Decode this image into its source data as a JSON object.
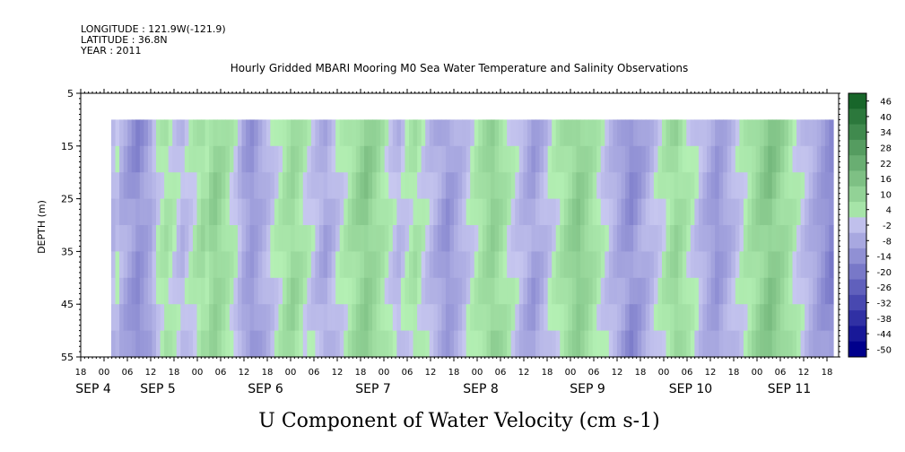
{
  "header": {
    "longitude": "LONGITUDE : 121.9W(-121.9)",
    "latitude": "LATITUDE : 36.8N",
    "year": "YEAR : 2011",
    "title": "Hourly Gridded MBARI Mooring M0 Sea Water Temperature and Salinity Observations"
  },
  "chart_data": {
    "type": "heatmap",
    "title": "Hourly Gridded MBARI Mooring M0 Sea Water Temperature and Salinity Observations",
    "xlabel": "U Component of Water Velocity (cm s-1)",
    "ylabel": "DEPTH (m)",
    "y_ticks": [
      "5",
      "15",
      "25",
      "35",
      "45",
      "55"
    ],
    "ylim": [
      5,
      55
    ],
    "y_reversed": true,
    "data_depth_range": [
      10,
      55
    ],
    "x_range_hours": [
      "2011-09-04 18:00",
      "2011-09-11 21:00"
    ],
    "data_time_range": [
      "2011-09-05 00:00",
      "2011-09-11 18:00"
    ],
    "x_hour_ticks": [
      "18",
      "00",
      "06",
      "12",
      "18",
      "00",
      "06",
      "12",
      "18",
      "00",
      "06",
      "12",
      "18",
      "00",
      "06",
      "12",
      "18",
      "00",
      "06",
      "12",
      "18",
      "00",
      "06",
      "12",
      "18",
      "00",
      "06",
      "12",
      "18",
      "00",
      "06",
      "12",
      "18"
    ],
    "x_day_ticks": [
      "SEP 4",
      "SEP 5",
      "SEP 6",
      "SEP 7",
      "SEP 8",
      "SEP 9",
      "SEP 10",
      "SEP 11"
    ],
    "colorbar": {
      "labels": [
        "46",
        "40",
        "34",
        "28",
        "22",
        "16",
        "10",
        "4",
        "-2",
        "-8",
        "-14",
        "-20",
        "-26",
        "-32",
        "-38",
        "-44",
        "-50"
      ],
      "range": [
        -50,
        52
      ]
    },
    "column_values": [
      -4,
      -2,
      -6,
      -8,
      -10,
      -12,
      -14,
      -12,
      -10,
      -8,
      -4,
      0,
      2,
      4,
      2,
      0,
      -2,
      -4,
      -2,
      0,
      2,
      4,
      6,
      4,
      8,
      10,
      8,
      6,
      4,
      2,
      0,
      -4,
      -8,
      -10,
      -12,
      -10,
      -8,
      -6,
      -4,
      -2,
      0,
      2,
      4,
      6,
      8,
      6,
      4,
      2,
      0,
      -2,
      -4,
      -6,
      -8,
      -6,
      -4,
      -2,
      0,
      2,
      4,
      6,
      8,
      10,
      12,
      10,
      8,
      6,
      4,
      2,
      0,
      -2,
      -4,
      -2,
      0,
      2,
      4,
      2,
      0,
      -2,
      -4,
      -6,
      -8,
      -10,
      -12,
      -10,
      -8,
      -6,
      -4,
      -2,
      0,
      2,
      4,
      6,
      8,
      10,
      8,
      6,
      4,
      2,
      0,
      -2,
      -4,
      -6,
      -8,
      -10,
      -8,
      -6,
      -4,
      -2,
      0,
      2,
      4,
      6,
      8,
      10,
      12,
      10,
      8,
      6,
      4,
      2,
      0,
      -2,
      -4,
      -6,
      -8,
      -10,
      -12,
      -14,
      -12,
      -10,
      -8,
      -6,
      -4,
      -2,
      0,
      2,
      4,
      6,
      8,
      6,
      4,
      2,
      0,
      -2,
      -4,
      -6,
      -8,
      -10,
      -12,
      -10,
      -8,
      -6,
      -4,
      -2,
      0,
      2,
      4,
      6,
      8,
      10,
      12,
      14,
      12,
      10,
      8,
      6,
      4,
      2,
      0,
      -2,
      -4,
      -6,
      -8,
      -10,
      -12,
      -14,
      -16
    ]
  }
}
